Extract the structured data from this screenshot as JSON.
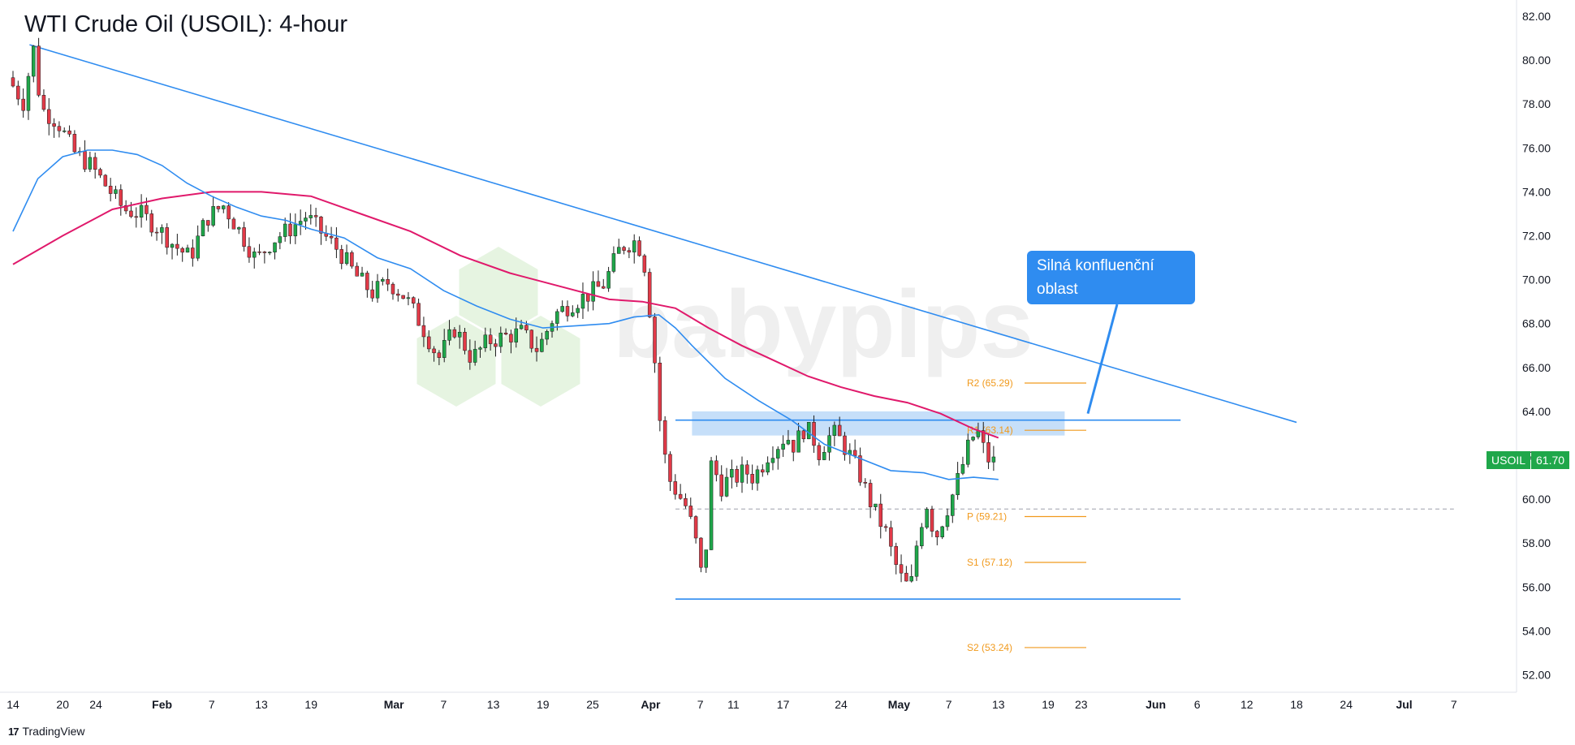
{
  "header": {
    "title": "WTI Crude Oil (USOIL): 4-hour"
  },
  "price_badge": {
    "symbol": "USOIL",
    "price": "61.70"
  },
  "callout": {
    "line1": "Silná konfluenční",
    "line2": "oblast"
  },
  "watermark": {
    "text": "babypips"
  },
  "footer": {
    "brand": "TradingView"
  },
  "colors": {
    "up_candle": "#1fa74a",
    "down_candle": "#e23a48",
    "trendline": "#2f8cf0",
    "ma_fast": "#2f8cf0",
    "ma_slow": "#e0196b",
    "zone": "#bcd9f8",
    "pivot": "#f19a1d"
  },
  "chart_data": {
    "type": "candlestick",
    "title": "WTI Crude Oil (USOIL): 4-hour",
    "ylim": [
      51,
      82.5
    ],
    "y_ticks": [
      "82.00",
      "80.00",
      "78.00",
      "76.00",
      "74.00",
      "72.00",
      "70.00",
      "68.00",
      "66.00",
      "64.00",
      "62.00",
      "60.00",
      "58.00",
      "56.00",
      "54.00",
      "52.00"
    ],
    "x_ticks": [
      {
        "label": "14",
        "day": 0
      },
      {
        "label": "20",
        "day": 6
      },
      {
        "label": "24",
        "day": 10
      },
      {
        "label": "Feb",
        "day": 18,
        "bold": true
      },
      {
        "label": "7",
        "day": 24
      },
      {
        "label": "13",
        "day": 30
      },
      {
        "label": "19",
        "day": 36
      },
      {
        "label": "Mar",
        "day": 46,
        "bold": true
      },
      {
        "label": "7",
        "day": 52
      },
      {
        "label": "13",
        "day": 58
      },
      {
        "label": "19",
        "day": 64
      },
      {
        "label": "25",
        "day": 70
      },
      {
        "label": "Apr",
        "day": 77,
        "bold": true
      },
      {
        "label": "7",
        "day": 83
      },
      {
        "label": "11",
        "day": 87
      },
      {
        "label": "17",
        "day": 93
      },
      {
        "label": "24",
        "day": 100
      },
      {
        "label": "May",
        "day": 107,
        "bold": true
      },
      {
        "label": "7",
        "day": 113
      },
      {
        "label": "13",
        "day": 119
      },
      {
        "label": "19",
        "day": 125
      },
      {
        "label": "23",
        "day": 129
      },
      {
        "label": "Jun",
        "day": 138,
        "bold": true
      },
      {
        "label": "6",
        "day": 143
      },
      {
        "label": "12",
        "day": 149
      },
      {
        "label": "18",
        "day": 155
      },
      {
        "label": "24",
        "day": 161
      },
      {
        "label": "Jul",
        "day": 168,
        "bold": true
      },
      {
        "label": "7",
        "day": 174
      }
    ],
    "price_path": [
      [
        0,
        79.2
      ],
      [
        2,
        78.0
      ],
      [
        3,
        80.8
      ],
      [
        4,
        77.8
      ],
      [
        6,
        77.2
      ],
      [
        8,
        75.8
      ],
      [
        10,
        75.2
      ],
      [
        12,
        74.2
      ],
      [
        14,
        73.2
      ],
      [
        16,
        73.0
      ],
      [
        18,
        72.4
      ],
      [
        20,
        71.6
      ],
      [
        22,
        71.0
      ],
      [
        24,
        72.8
      ],
      [
        26,
        73.4
      ],
      [
        28,
        72.2
      ],
      [
        30,
        70.9
      ],
      [
        32,
        71.8
      ],
      [
        34,
        72.3
      ],
      [
        36,
        72.9
      ],
      [
        38,
        72.1
      ],
      [
        40,
        71.3
      ],
      [
        42,
        70.2
      ],
      [
        44,
        69.4
      ],
      [
        46,
        69.9
      ],
      [
        48,
        69.2
      ],
      [
        50,
        67.9
      ],
      [
        52,
        66.4
      ],
      [
        54,
        67.8
      ],
      [
        56,
        66.4
      ],
      [
        58,
        67.2
      ],
      [
        60,
        67.4
      ],
      [
        62,
        67.6
      ],
      [
        64,
        66.8
      ],
      [
        66,
        68.4
      ],
      [
        68,
        68.9
      ],
      [
        70,
        69.3
      ],
      [
        72,
        69.8
      ],
      [
        74,
        71.5
      ],
      [
        76,
        71.8
      ],
      [
        77,
        70.5
      ],
      [
        78,
        66.8
      ],
      [
        79,
        62.5
      ],
      [
        80,
        60.8
      ],
      [
        81,
        60.2
      ],
      [
        82,
        59.6
      ],
      [
        83,
        58.2
      ],
      [
        84,
        56.0
      ],
      [
        85,
        61.9
      ],
      [
        86,
        60.5
      ],
      [
        87,
        60.9
      ],
      [
        88,
        61.0
      ],
      [
        89,
        61.3
      ],
      [
        90,
        61.0
      ],
      [
        91,
        61.5
      ],
      [
        92,
        62.2
      ],
      [
        93,
        62.5
      ],
      [
        94,
        62.9
      ],
      [
        95,
        62.4
      ],
      [
        96,
        63.2
      ],
      [
        97,
        63.0
      ],
      [
        98,
        62.1
      ],
      [
        99,
        62.8
      ],
      [
        100,
        63.0
      ],
      [
        101,
        62.4
      ],
      [
        102,
        61.8
      ],
      [
        103,
        61.0
      ],
      [
        104,
        60.0
      ],
      [
        105,
        59.2
      ],
      [
        106,
        58.5
      ],
      [
        107,
        57.2
      ],
      [
        108,
        56.3
      ],
      [
        109,
        55.9
      ],
      [
        110,
        58.6
      ],
      [
        111,
        59.8
      ],
      [
        112,
        58.2
      ],
      [
        113,
        59.2
      ],
      [
        114,
        60.1
      ],
      [
        115,
        61.2
      ],
      [
        116,
        62.4
      ],
      [
        117,
        63.2
      ],
      [
        118,
        62.1
      ],
      [
        118.6,
        61.7
      ]
    ],
    "ma_fast": [
      [
        0,
        72.2
      ],
      [
        3,
        74.6
      ],
      [
        6,
        75.6
      ],
      [
        9,
        75.9
      ],
      [
        12,
        75.9
      ],
      [
        15,
        75.7
      ],
      [
        18,
        75.2
      ],
      [
        21,
        74.4
      ],
      [
        24,
        73.8
      ],
      [
        27,
        73.3
      ],
      [
        30,
        72.9
      ],
      [
        33,
        72.7
      ],
      [
        36,
        72.3
      ],
      [
        40,
        71.9
      ],
      [
        44,
        71.0
      ],
      [
        48,
        70.5
      ],
      [
        52,
        69.5
      ],
      [
        56,
        68.8
      ],
      [
        60,
        68.2
      ],
      [
        64,
        67.8
      ],
      [
        68,
        67.9
      ],
      [
        72,
        68.0
      ],
      [
        75,
        68.3
      ],
      [
        78,
        68.4
      ],
      [
        80,
        67.8
      ],
      [
        82,
        67.0
      ],
      [
        86,
        65.5
      ],
      [
        90,
        64.5
      ],
      [
        94,
        63.6
      ],
      [
        98,
        62.5
      ],
      [
        102,
        61.9
      ],
      [
        106,
        61.3
      ],
      [
        110,
        61.2
      ],
      [
        113,
        60.9
      ],
      [
        116,
        61.0
      ],
      [
        119,
        60.9
      ]
    ],
    "ma_slow": [
      [
        0,
        70.7
      ],
      [
        6,
        72.0
      ],
      [
        12,
        73.2
      ],
      [
        18,
        73.7
      ],
      [
        24,
        74.0
      ],
      [
        30,
        74.0
      ],
      [
        36,
        73.8
      ],
      [
        42,
        73.0
      ],
      [
        48,
        72.2
      ],
      [
        54,
        71.1
      ],
      [
        60,
        70.3
      ],
      [
        66,
        69.7
      ],
      [
        72,
        69.1
      ],
      [
        76,
        69.0
      ],
      [
        80,
        68.7
      ],
      [
        84,
        67.8
      ],
      [
        88,
        67.0
      ],
      [
        92,
        66.3
      ],
      [
        96,
        65.6
      ],
      [
        100,
        65.1
      ],
      [
        104,
        64.7
      ],
      [
        108,
        64.4
      ],
      [
        112,
        63.9
      ],
      [
        116,
        63.2
      ],
      [
        119,
        62.8
      ]
    ],
    "trendline": {
      "start": [
        2,
        80.7
      ],
      "end": [
        155,
        63.5
      ]
    },
    "horizontal_levels": [
      {
        "name": "resistance",
        "y": 63.6,
        "x_range": [
          80,
          141
        ]
      },
      {
        "name": "support",
        "y": 55.45,
        "x_range": [
          80,
          141
        ]
      },
      {
        "name": "pivot-dashed",
        "y": 59.55,
        "x_range": [
          80,
          174
        ]
      }
    ],
    "confluence_zone": {
      "y_range": [
        62.9,
        64.0
      ],
      "x_range": [
        82,
        127
      ]
    },
    "pivot_levels": [
      {
        "label": "R2 (65.29)",
        "value": 65.29
      },
      {
        "label": "R1 (63.14)",
        "value": 63.14
      },
      {
        "label": "P (59.21)",
        "value": 59.21
      },
      {
        "label": "S1 (57.12)",
        "value": 57.12
      },
      {
        "label": "S2 (53.24)",
        "value": 53.24
      }
    ],
    "last_price": 61.7
  }
}
